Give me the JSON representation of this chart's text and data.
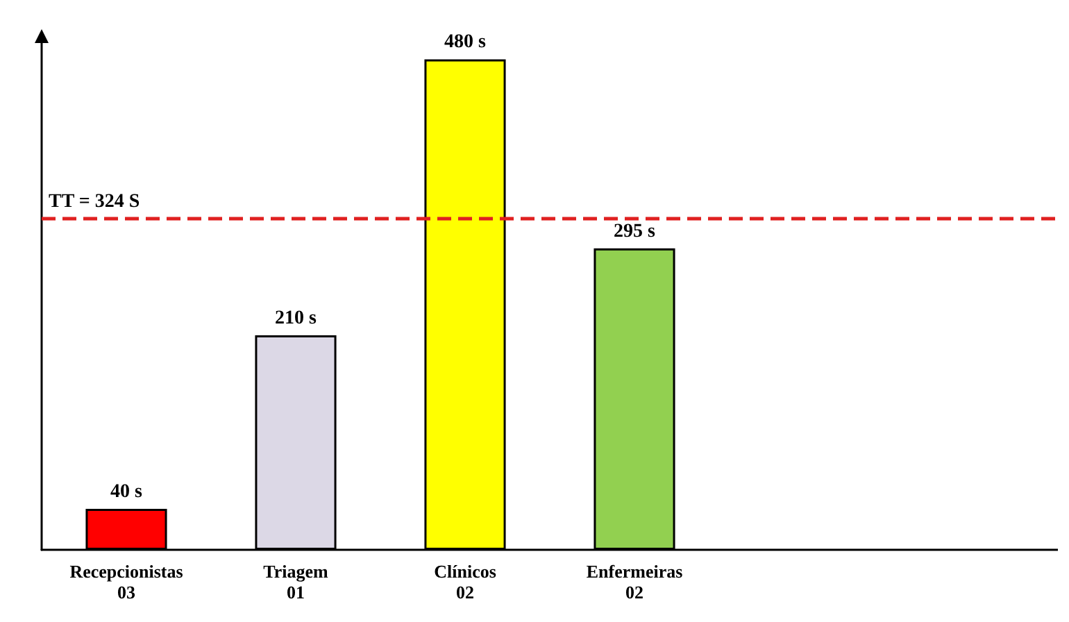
{
  "chart_data": {
    "type": "bar",
    "categories": [
      "Recepcionistas\n03",
      "Triagem\n01",
      "Clínicos\n02",
      "Enfermeiras\n02"
    ],
    "values": [
      40,
      210,
      480,
      295
    ],
    "colors": [
      "#ff0000",
      "#dcd8e6",
      "#ffff00",
      "#92d050"
    ],
    "value_labels": [
      "40 s",
      "210 s",
      "480 s",
      "295 s"
    ],
    "ref_lines": [
      {
        "axis": "y",
        "value": 324,
        "label": "TT = 324 S",
        "color": "#e02020",
        "line_style": "dashed"
      }
    ],
    "tick_labels": "x",
    "grid": false
  }
}
